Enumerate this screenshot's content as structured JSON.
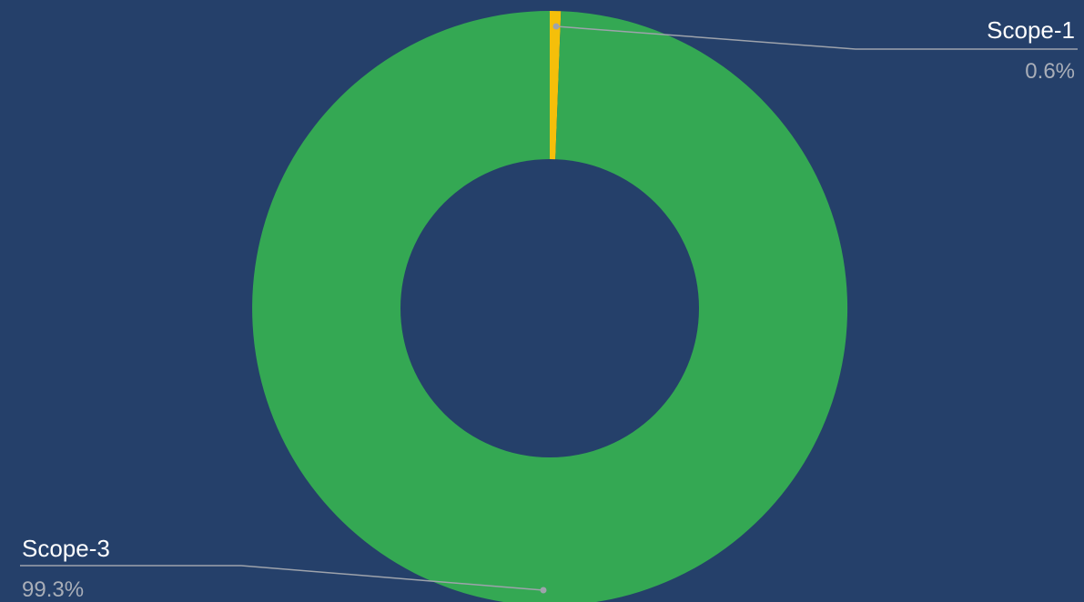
{
  "colors": {
    "background": "#25406a",
    "leader_line": "#9ea3ac",
    "label_text": "#ffffff",
    "value_text": "#a9aeb8"
  },
  "chart_data": {
    "type": "pie",
    "donut": true,
    "slices": [
      {
        "label": "Scope-1",
        "value": 0.6,
        "display": "0.6%",
        "color": "#f5bf0a"
      },
      {
        "label": "Scope-3",
        "value": 99.3,
        "display": "99.3%",
        "color": "#34a853"
      }
    ],
    "start_angle_deg": 0,
    "direction": "clockwise"
  }
}
